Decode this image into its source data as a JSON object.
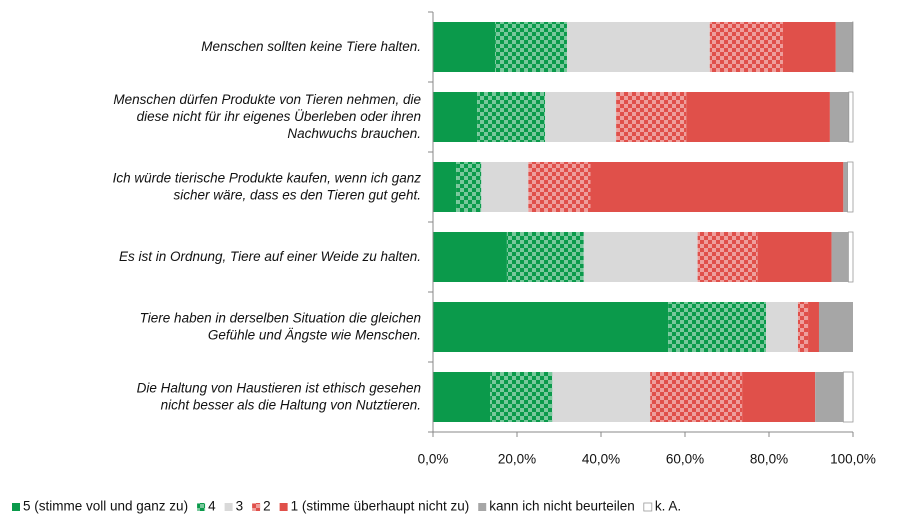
{
  "chart_data": {
    "type": "stacked_barh",
    "categories": [
      "Menschen sollten keine Tiere halten.",
      "Menschen dürfen Produkte von Tieren nehmen, die\ndiese nicht für ihr eigenes Überleben oder ihren\nNachwuchs brauchen.",
      "Ich würde tierische Produkte kaufen, wenn ich ganz\nsicher wäre, dass es den Tieren gut geht.",
      "Es ist in Ordnung, Tiere auf einer Weide zu halten.",
      "Tiere haben in derselben Situation die gleichen\nGefühle und Ängste wie Menschen.",
      "Die Haltung von Haustieren ist ethisch gesehen\nnicht besser als die Haltung von Nutztieren."
    ],
    "series": [
      {
        "name": "5 (stimme voll und ganz zu)",
        "color": "#0b9a4b",
        "pattern": false,
        "values": [
          14.8,
          10.5,
          5.5,
          17.6,
          56.0,
          13.6
        ]
      },
      {
        "name": "4",
        "color": "#0b9a4b",
        "pattern": true,
        "values": [
          17.1,
          16.2,
          6.0,
          18.3,
          23.3,
          14.8
        ]
      },
      {
        "name": "3",
        "color": "#d9d9d9",
        "pattern": false,
        "values": [
          34.0,
          16.9,
          11.2,
          27.1,
          7.6,
          23.3
        ]
      },
      {
        "name": "2",
        "color": "#e0504a",
        "pattern": true,
        "values": [
          17.4,
          16.7,
          14.8,
          14.3,
          2.4,
          21.9
        ]
      },
      {
        "name": "1 (stimme überhaupt nicht zu)",
        "color": "#e0504a",
        "pattern": false,
        "values": [
          12.6,
          34.2,
          60.2,
          17.6,
          2.6,
          17.4
        ]
      },
      {
        "name": "kann ich nicht beurteilen",
        "color": "#a6a6a6",
        "pattern": false,
        "values": [
          4.0,
          4.5,
          1.0,
          4.0,
          8.1,
          6.7
        ]
      },
      {
        "name": "k. A.",
        "color": "#ffffff",
        "pattern": false,
        "values": [
          0.1,
          1.0,
          1.3,
          1.1,
          0.0,
          2.3
        ]
      }
    ],
    "xlim": [
      0,
      100
    ],
    "xticks": [
      {
        "value": 0,
        "label": "0,0%"
      },
      {
        "value": 20,
        "label": "20,0%"
      },
      {
        "value": 40,
        "label": "40,0%"
      },
      {
        "value": 60,
        "label": "60,0%"
      },
      {
        "value": 80,
        "label": "80,0%"
      },
      {
        "value": 100,
        "label": "100,0%"
      }
    ],
    "legend": "bottom"
  }
}
